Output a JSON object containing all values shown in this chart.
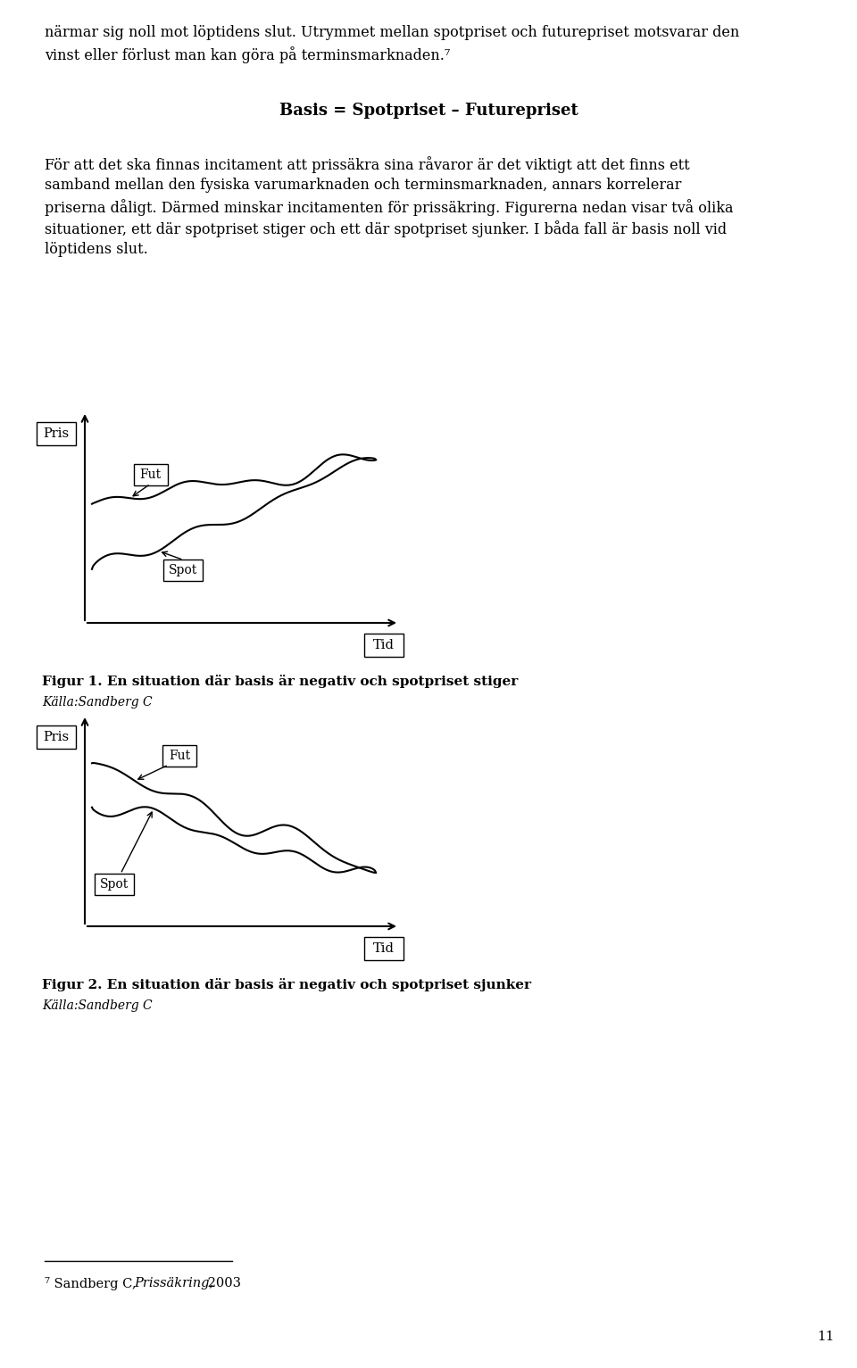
{
  "background_color": "#ffffff",
  "text_color": "#000000",
  "page_number": "11",
  "top_text_lines": [
    "närmar sig noll mot löptidens slut. Utrymmet mellan spotpriset och futurepriset motsvarar den",
    "vinst eller förlust man kan göra på terminsmarknaden.⁷"
  ],
  "formula_text": "Basis = Spotpriset – Futurepriset",
  "body_lines": [
    "För att det ska finnas incitament att prissäkra sina råvaror är det viktigt att det finns ett",
    "samband mellan den fysiska varumarknaden och terminsmarknaden, annars korrelerar",
    "priserna dåligt. Därmed minskar incitamenten för prissäkring. Figurerna nedan visar två olika",
    "situationer, ett där spotpriset stiger och ett där spotpriset sjunker. I båda fall är basis noll vid",
    "löptidens slut."
  ],
  "fig1_caption": "Figur 1. En situation där basis är negativ och spotpriset stiger",
  "fig1_source": "Källa:Sandberg C",
  "fig2_caption": "Figur 2. En situation där basis är negativ och spotpriset sjunker",
  "fig2_source": "Källa:Sandberg C",
  "pris_label": "Pris",
  "tid_label": "Tid",
  "fut_label": "Fut",
  "spot_label": "Spot",
  "footnote_text1": "⁷ Sandberg C, ",
  "footnote_italic": "Prissäkring,",
  "footnote_text2": " 2003"
}
